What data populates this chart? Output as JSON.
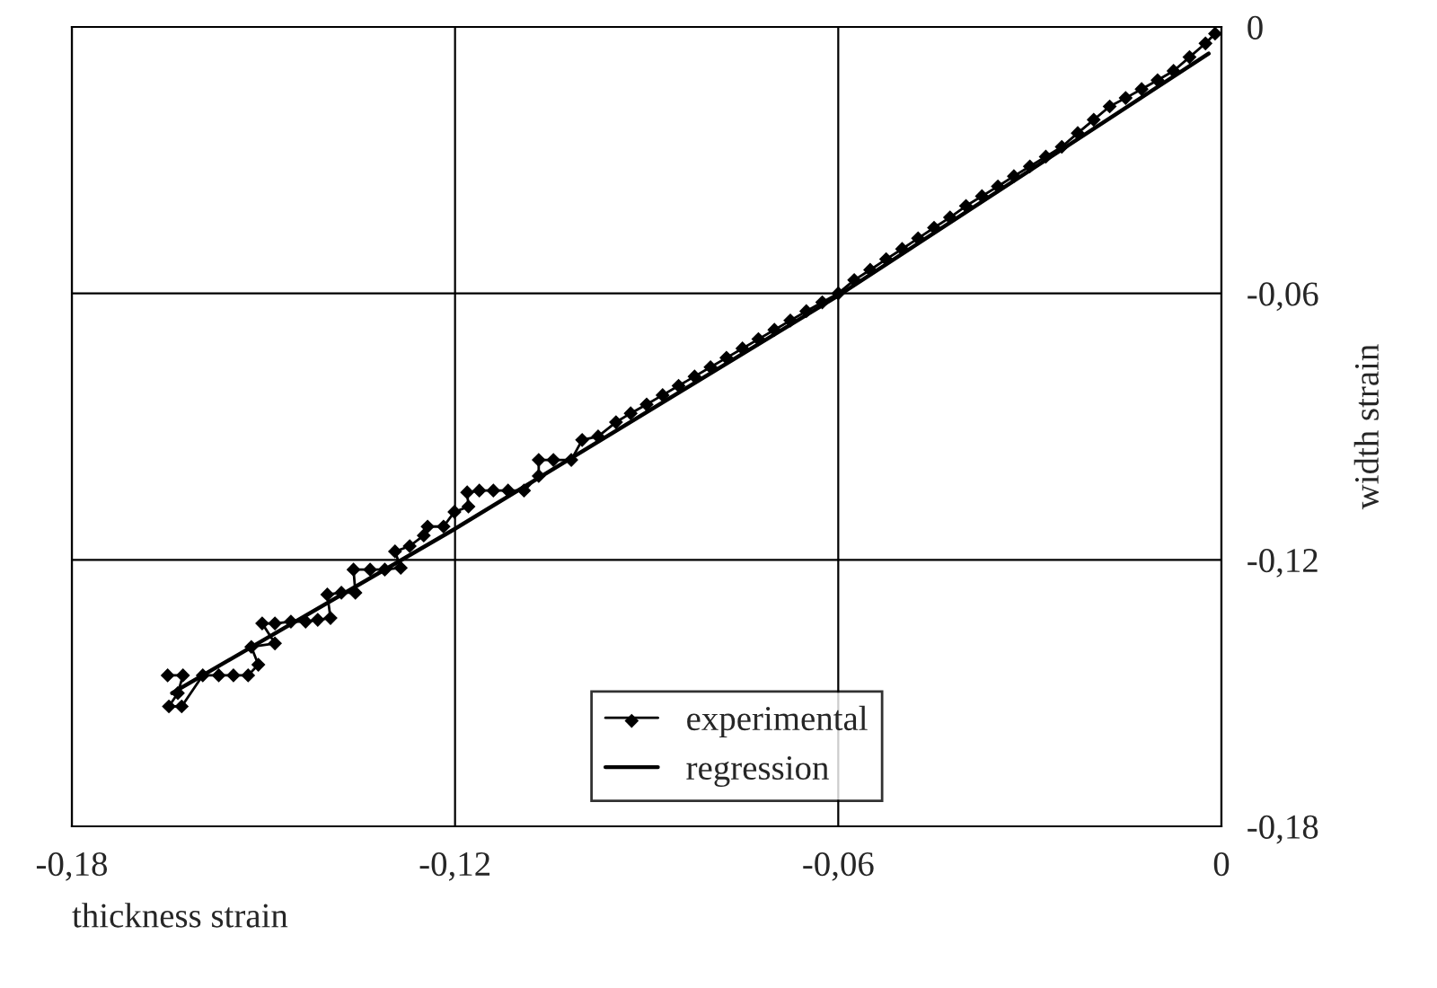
{
  "chart_data": {
    "type": "line",
    "xlabel": "thickness strain",
    "ylabel": "width strain",
    "xlim": [
      -0.18,
      0
    ],
    "ylim": [
      -0.18,
      0
    ],
    "xticks": [
      {
        "value": -0.18,
        "label": "-0,18"
      },
      {
        "value": -0.12,
        "label": "-0,12"
      },
      {
        "value": -0.06,
        "label": "-0,06"
      },
      {
        "value": 0,
        "label": "0"
      }
    ],
    "yticks": [
      {
        "value": -0.18,
        "label": "-0,18"
      },
      {
        "value": -0.12,
        "label": "-0,12"
      },
      {
        "value": -0.06,
        "label": "-0,06"
      },
      {
        "value": 0,
        "label": "0"
      }
    ],
    "grid": true,
    "legend": "bottom right",
    "series": [
      {
        "name": "experimental",
        "color": "#000000",
        "marker": "diamond",
        "x": [
          -0.165,
          -0.1626,
          -0.1634,
          -0.1648,
          -0.1628,
          -0.1595,
          -0.157,
          -0.1547,
          -0.1524,
          -0.1508,
          -0.1519,
          -0.1482,
          -0.1502,
          -0.1482,
          -0.1457,
          -0.1434,
          -0.1415,
          -0.1395,
          -0.14,
          -0.1378,
          -0.1356,
          -0.1359,
          -0.1333,
          -0.131,
          -0.1285,
          -0.1294,
          -0.1271,
          -0.1249,
          -0.1243,
          -0.1218,
          -0.1201,
          -0.1179,
          -0.1181,
          -0.1162,
          -0.114,
          -0.1117,
          -0.1092,
          -0.1069,
          -0.1069,
          -0.1046,
          -0.1018,
          -0.1001,
          -0.0976,
          -0.0948,
          -0.0925,
          -0.09,
          -0.0875,
          -0.085,
          -0.0825,
          -0.08,
          -0.0775,
          -0.075,
          -0.0725,
          -0.07,
          -0.0675,
          -0.065,
          -0.0625,
          -0.06,
          -0.0575,
          -0.055,
          -0.0525,
          -0.05,
          -0.0475,
          -0.045,
          -0.0425,
          -0.04,
          -0.0375,
          -0.035,
          -0.0325,
          -0.03,
          -0.0275,
          -0.025,
          -0.0225,
          -0.02,
          -0.0175,
          -0.015,
          -0.0125,
          -0.01,
          -0.0075,
          -0.005,
          -0.0025,
          -0.001
        ],
        "values": [
          -0.146,
          -0.146,
          -0.15,
          -0.153,
          -0.153,
          -0.146,
          -0.146,
          -0.146,
          -0.146,
          -0.1436,
          -0.1396,
          -0.1388,
          -0.1343,
          -0.1343,
          -0.1339,
          -0.1339,
          -0.1335,
          -0.1331,
          -0.1278,
          -0.1274,
          -0.1274,
          -0.1222,
          -0.1222,
          -0.1222,
          -0.1218,
          -0.1181,
          -0.1169,
          -0.1145,
          -0.1125,
          -0.1125,
          -0.1092,
          -0.108,
          -0.1048,
          -0.1044,
          -0.1044,
          -0.1044,
          -0.1044,
          -0.1011,
          -0.0975,
          -0.0975,
          -0.0975,
          -0.093,
          -0.0922,
          -0.089,
          -0.087,
          -0.085,
          -0.0829,
          -0.0808,
          -0.0787,
          -0.0766,
          -0.0745,
          -0.0724,
          -0.0703,
          -0.0682,
          -0.0661,
          -0.064,
          -0.062,
          -0.06,
          -0.057,
          -0.0547,
          -0.0523,
          -0.05,
          -0.0476,
          -0.0452,
          -0.0429,
          -0.0403,
          -0.0381,
          -0.0359,
          -0.0336,
          -0.0314,
          -0.0292,
          -0.027,
          -0.0239,
          -0.0209,
          -0.0179,
          -0.016,
          -0.014,
          -0.012,
          -0.0099,
          -0.0068,
          -0.0037,
          -0.0015
        ]
      },
      {
        "name": "regression",
        "color": "#000000",
        "marker": "none",
        "x": [
          -0.1643,
          -0.12,
          -0.06,
          -0.002
        ],
        "values": [
          -0.15,
          -0.113,
          -0.0605,
          -0.006
        ]
      }
    ]
  }
}
